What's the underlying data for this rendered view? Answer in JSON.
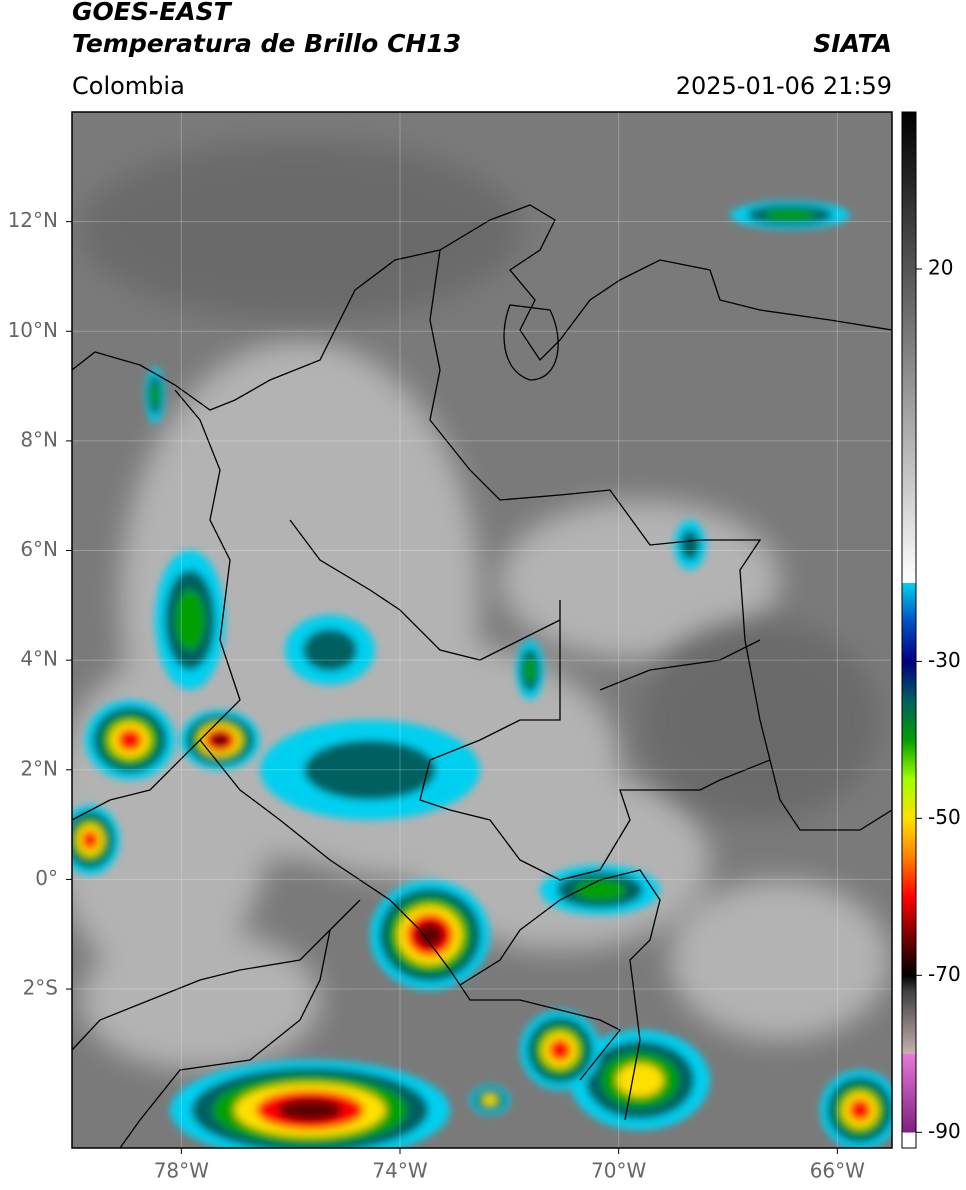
{
  "title": "GOES-EAST",
  "subtitle": "Temperatura de Brillo CH13",
  "region": "Colombia",
  "source": "SIATA",
  "timestamp": "2025-01-06 21:59",
  "map": {
    "xlim": [
      -80,
      -65
    ],
    "ylim": [
      -4.9,
      14
    ],
    "xticks": [
      {
        "value": -78,
        "label": "78°W"
      },
      {
        "value": -74,
        "label": "74°W"
      },
      {
        "value": -70,
        "label": "70°W"
      },
      {
        "value": -66,
        "label": "66°W"
      }
    ],
    "yticks": [
      {
        "value": 12,
        "label": "12°N"
      },
      {
        "value": 10,
        "label": "10°N"
      },
      {
        "value": 8,
        "label": "8°N"
      },
      {
        "value": 6,
        "label": "6°N"
      },
      {
        "value": 4,
        "label": "4°N"
      },
      {
        "value": 2,
        "label": "2°N"
      },
      {
        "value": 0,
        "label": "0°"
      },
      {
        "value": -2,
        "label": "2°S"
      }
    ],
    "grid": true
  },
  "colorbar": {
    "range": [
      -92,
      40
    ],
    "ticks": [
      20,
      -30,
      -50,
      -70,
      -90
    ],
    "stops": [
      {
        "value": -92,
        "color": "#ffffff"
      },
      {
        "value": -90,
        "color": "#ffffff"
      },
      {
        "value": -90,
        "color": "#802080"
      },
      {
        "value": -80,
        "color": "#e878d8"
      },
      {
        "value": -80,
        "color": "#c8b0b0"
      },
      {
        "value": -72,
        "color": "#404040"
      },
      {
        "value": -70,
        "color": "#000000"
      },
      {
        "value": -66,
        "color": "#600000"
      },
      {
        "value": -60,
        "color": "#ff0000"
      },
      {
        "value": -55,
        "color": "#ff8000"
      },
      {
        "value": -50,
        "color": "#ffe000"
      },
      {
        "value": -45,
        "color": "#a0ff00"
      },
      {
        "value": -40,
        "color": "#00a000"
      },
      {
        "value": -35,
        "color": "#006060"
      },
      {
        "value": -30,
        "color": "#000080"
      },
      {
        "value": -25,
        "color": "#0050c0"
      },
      {
        "value": -20,
        "color": "#00d0f0"
      },
      {
        "value": -20,
        "color": "#ffffff"
      },
      {
        "value": 40,
        "color": "#000000"
      }
    ]
  }
}
